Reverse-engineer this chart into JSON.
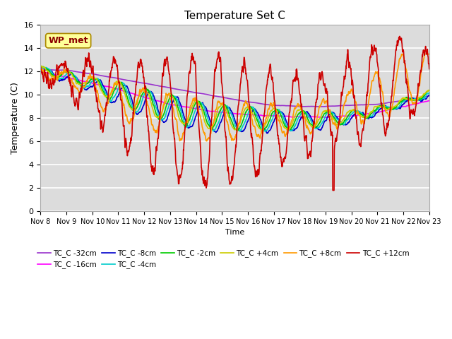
{
  "title": "Temperature Set C",
  "xlabel": "Time",
  "ylabel": "Temperature (C)",
  "ylim": [
    0,
    16
  ],
  "xlim": [
    0,
    15
  ],
  "x_tick_labels": [
    "Nov 8",
    "Nov 9",
    "Nov 10",
    "Nov 11",
    "Nov 12",
    "Nov 13",
    "Nov 14",
    "Nov 15",
    "Nov 16",
    "Nov 17",
    "Nov 18",
    "Nov 19",
    "Nov 20",
    "Nov 21",
    "Nov 22",
    "Nov 23"
  ],
  "wp_met_label": "WP_met",
  "wp_met_color": "#8B0000",
  "wp_met_bg": "#FFFF99",
  "background_color": "#DCDCDC",
  "series": [
    {
      "label": "TC_C -32cm",
      "color": "#9933CC"
    },
    {
      "label": "TC_C -16cm",
      "color": "#FF00FF"
    },
    {
      "label": "TC_C -8cm",
      "color": "#0000CC"
    },
    {
      "label": "TC_C -4cm",
      "color": "#00CCCC"
    },
    {
      "label": "TC_C -2cm",
      "color": "#00CC00"
    },
    {
      "label": "TC_C +4cm",
      "color": "#CCCC00"
    },
    {
      "label": "TC_C +8cm",
      "color": "#FF9900"
    },
    {
      "label": "TC_C +12cm",
      "color": "#CC0000"
    }
  ]
}
